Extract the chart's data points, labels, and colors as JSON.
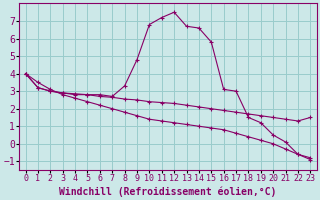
{
  "xlabel": "Windchill (Refroidissement éolien,°C)",
  "bg_color": "#cce8e8",
  "grid_color": "#99cccc",
  "line_color": "#880066",
  "xlim": [
    -0.5,
    23.5
  ],
  "ylim": [
    -1.5,
    8.0
  ],
  "xticks": [
    0,
    1,
    2,
    3,
    4,
    5,
    6,
    7,
    8,
    9,
    10,
    11,
    12,
    13,
    14,
    15,
    16,
    17,
    18,
    19,
    20,
    21,
    22,
    23
  ],
  "yticks": [
    -1,
    0,
    1,
    2,
    3,
    4,
    5,
    6,
    7
  ],
  "series1_x": [
    0,
    1,
    2,
    3,
    4,
    5,
    6,
    7,
    8,
    9,
    10,
    11,
    12,
    13,
    14,
    15,
    16,
    17,
    18,
    19,
    20,
    21,
    22,
    23
  ],
  "series1_y": [
    4.0,
    3.2,
    3.0,
    2.9,
    2.8,
    2.8,
    2.8,
    2.7,
    3.3,
    4.8,
    6.8,
    7.2,
    7.5,
    6.7,
    6.6,
    5.8,
    3.1,
    3.0,
    1.5,
    1.2,
    0.5,
    0.1,
    -0.6,
    -0.8
  ],
  "series2_x": [
    0,
    1,
    2,
    3,
    4,
    5,
    6,
    7,
    8,
    9,
    10,
    11,
    12,
    13,
    14,
    15,
    16,
    17,
    18,
    19,
    20,
    21,
    22,
    23
  ],
  "series2_y": [
    4.0,
    3.2,
    3.0,
    2.9,
    2.85,
    2.8,
    2.7,
    2.65,
    2.55,
    2.5,
    2.4,
    2.35,
    2.3,
    2.2,
    2.1,
    2.0,
    1.9,
    1.8,
    1.7,
    1.6,
    1.5,
    1.4,
    1.3,
    1.5
  ],
  "series3_x": [
    0,
    1,
    2,
    3,
    4,
    5,
    6,
    7,
    8,
    9,
    10,
    11,
    12,
    13,
    14,
    15,
    16,
    17,
    18,
    19,
    20,
    21,
    22,
    23
  ],
  "series3_y": [
    4.0,
    3.5,
    3.1,
    2.8,
    2.6,
    2.4,
    2.2,
    2.0,
    1.8,
    1.6,
    1.4,
    1.3,
    1.2,
    1.1,
    1.0,
    0.9,
    0.8,
    0.6,
    0.4,
    0.2,
    0.0,
    -0.3,
    -0.6,
    -0.9
  ],
  "font_size_xlabel": 7,
  "font_size_ytick": 7,
  "font_size_xtick": 6
}
